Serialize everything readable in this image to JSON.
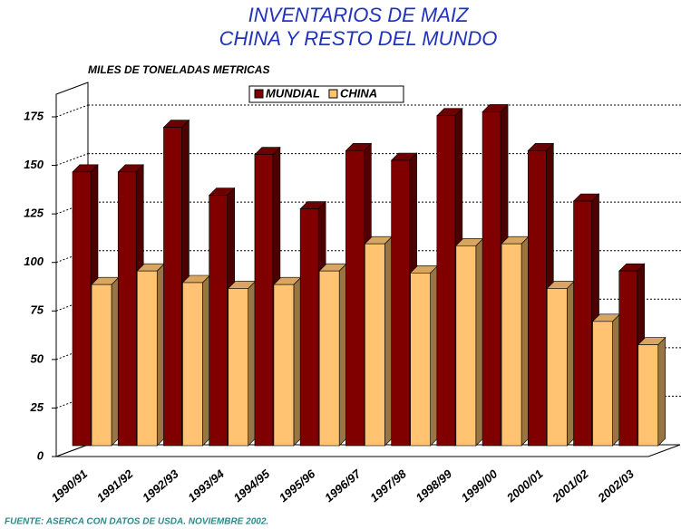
{
  "chart_data": {
    "type": "bar3d",
    "title": [
      "INVENTARIOS DE MAIZ",
      "CHINA Y RESTO DEL MUNDO"
    ],
    "ylabel": "MILES DE TONELADAS METRICAS",
    "source": "FUENTE: ASERCA CON DATOS DE USDA. NOVIEMBRE 2002.",
    "categories": [
      "1990/91",
      "1991/92",
      "1992/93",
      "1993/94",
      "1994/95",
      "1995/96",
      "1996/97",
      "1997/98",
      "1998/99",
      "1999/00",
      "2000/01",
      "2001/02",
      "2002/03"
    ],
    "series": [
      {
        "name": "MUNDIAL",
        "color": "#800000",
        "values": [
          141,
          141,
          164,
          129,
          150,
          122,
          152,
          147,
          170,
          172,
          152,
          126,
          90
        ]
      },
      {
        "name": "CHINA",
        "color": "#ffc372",
        "values": [
          83,
          90,
          84,
          81,
          83,
          90,
          104,
          89,
          103,
          104,
          81,
          64,
          52
        ]
      }
    ],
    "ylim": [
      0,
      175
    ],
    "yticks": [
      0,
      25,
      50,
      75,
      100,
      125,
      150,
      175
    ],
    "grid": true,
    "legend": "top"
  }
}
